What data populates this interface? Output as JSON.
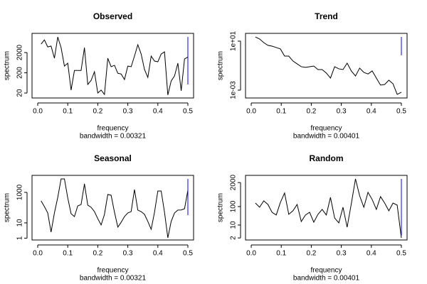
{
  "chart_data": [
    {
      "type": "line",
      "title": "Observed",
      "xlabel": "frequency",
      "ylabel": "spectrum",
      "subtitle": "bandwidth = 0.00321",
      "ylog": true,
      "color": "#000000",
      "x": [
        0.0111,
        0.0222,
        0.0333,
        0.0444,
        0.0556,
        0.0667,
        0.0778,
        0.0889,
        0.1,
        0.1111,
        0.1222,
        0.1333,
        0.1444,
        0.1556,
        0.1667,
        0.1778,
        0.1889,
        0.2,
        0.2111,
        0.2222,
        0.2333,
        0.2444,
        0.2556,
        0.2667,
        0.2778,
        0.2889,
        0.3,
        0.3111,
        0.3222,
        0.3333,
        0.3444,
        0.3556,
        0.3667,
        0.3778,
        0.3889,
        0.4,
        0.4111,
        0.4222,
        0.4333,
        0.4444,
        0.4556,
        0.4667,
        0.4778,
        0.4889,
        0.5
      ],
      "values": [
        5250,
        8500,
        3800,
        4200,
        1050,
        11800,
        3500,
        430,
        600,
        28,
        260,
        260,
        260,
        3500,
        53,
        85,
        225,
        20,
        28,
        17,
        1050,
        400,
        470,
        190,
        175,
        93,
        430,
        400,
        1340,
        4900,
        1700,
        290,
        118,
        1340,
        760,
        700,
        1700,
        2170,
        16,
        79,
        140,
        600,
        26,
        970,
        1200
      ],
      "ci": {
        "x": 0.5,
        "lower": 53,
        "upper": 11800,
        "color": "#0000ff"
      },
      "xlim": [
        -0.019,
        0.519
      ],
      "ylim": [
        11.4,
        17800
      ],
      "xticks": [
        {
          "value": 0,
          "label": "0.0"
        },
        0.1,
        0.2,
        0.3,
        0.4,
        0.5
      ],
      "yticks": [
        20,
        200,
        2000
      ]
    },
    {
      "type": "line",
      "title": "Trend",
      "xlabel": "frequency",
      "ylabel": "spectrum",
      "subtitle": "bandwidth = 0.00401",
      "ylog": true,
      "color": "#000000",
      "x": [
        0.0139,
        0.0278,
        0.0417,
        0.0556,
        0.0694,
        0.0833,
        0.0972,
        0.1111,
        0.125,
        0.1389,
        0.1528,
        0.1667,
        0.1806,
        0.1944,
        0.2083,
        0.2222,
        0.2361,
        0.25,
        0.2639,
        0.2778,
        0.2917,
        0.3056,
        0.3194,
        0.3333,
        0.3472,
        0.3611,
        0.375,
        0.3889,
        0.4028,
        0.4167,
        0.4306,
        0.4444,
        0.4583,
        0.4722,
        0.4861,
        0.5
      ],
      "values": [
        22,
        15,
        7.6,
        4.5,
        3.9,
        3.0,
        2.3,
        0.6,
        0.6,
        0.24,
        0.14,
        0.082,
        0.072,
        0.082,
        0.093,
        0.048,
        0.048,
        0.025,
        0.0097,
        0.082,
        0.055,
        0.048,
        0.16,
        0.037,
        0.0145,
        0.063,
        0.028,
        0.021,
        0.037,
        0.0097,
        0.0026,
        0.0029,
        0.0065,
        0.0033,
        0.00045,
        0.00067
      ],
      "ci": {
        "x": 0.5,
        "lower": 0.69,
        "upper": 22,
        "color": "#0000ff"
      },
      "xlim": [
        -0.019,
        0.519
      ],
      "ylim": [
        0.00023,
        43
      ],
      "xticks": [
        {
          "value": 0,
          "label": "0.0"
        },
        0.1,
        0.2,
        0.3,
        0.4,
        0.5
      ],
      "yticks": [
        {
          "value": 0.001,
          "label": "1e-03"
        },
        {
          "value": 10,
          "label": "1e+01"
        }
      ]
    },
    {
      "type": "line",
      "title": "Seasonal",
      "xlabel": "frequency",
      "ylabel": "spectrum",
      "subtitle": "bandwidth = 0.00321",
      "ylog": true,
      "color": "#000000",
      "x": [
        0.0111,
        0.0222,
        0.0333,
        0.0444,
        0.0556,
        0.0667,
        0.0778,
        0.0889,
        0.1,
        0.1111,
        0.1222,
        0.1333,
        0.1444,
        0.1556,
        0.1667,
        0.1778,
        0.1889,
        0.2,
        0.2111,
        0.2222,
        0.2333,
        0.2444,
        0.2556,
        0.2667,
        0.2778,
        0.2889,
        0.3,
        0.3111,
        0.3222,
        0.3333,
        0.3444,
        0.3556,
        0.3667,
        0.3778,
        0.3889,
        0.4,
        0.4111,
        0.4222,
        0.4333,
        0.4444,
        0.4556,
        0.4667,
        0.4778,
        0.4889,
        0.5
      ],
      "values": [
        280,
        117,
        45,
        2.5,
        45,
        470,
        7600,
        7600,
        430,
        40,
        26,
        130,
        160,
        3600,
        145,
        105,
        55,
        19,
        7.3,
        36,
        730,
        650,
        50,
        5.3,
        11,
        26,
        45,
        55,
        1530,
        69,
        55,
        36,
        12.4,
        3.8,
        50,
        1240,
        1240,
        50,
        1.05,
        12.4,
        45,
        69,
        70,
        85,
        1380
      ],
      "ci": {
        "x": 0.5,
        "lower": 32,
        "upper": 7600,
        "color": "#0000ff"
      },
      "xlim": [
        -0.019,
        0.519
      ],
      "ylim": [
        0.76,
        13000
      ],
      "xticks": [
        {
          "value": 0,
          "label": "0.0"
        },
        0.1,
        0.2,
        0.3,
        0.4,
        0.5
      ],
      "yticks": [
        1,
        10,
        1000
      ]
    },
    {
      "type": "line",
      "title": "Random",
      "xlabel": "frequency",
      "ylabel": "spectrum",
      "subtitle": "bandwidth = 0.00401",
      "ylog": true,
      "color": "#000000",
      "x": [
        0.0139,
        0.0278,
        0.0417,
        0.0556,
        0.0694,
        0.0833,
        0.0972,
        0.1111,
        0.125,
        0.1389,
        0.1528,
        0.1667,
        0.1806,
        0.1944,
        0.2083,
        0.2222,
        0.2361,
        0.25,
        0.2639,
        0.2778,
        0.2917,
        0.3056,
        0.3194,
        0.3333,
        0.3472,
        0.3611,
        0.375,
        0.3889,
        0.4028,
        0.4167,
        0.4306,
        0.4444,
        0.4583,
        0.4722,
        0.4861,
        0.5
      ],
      "values": [
        155,
        92,
        205,
        130,
        49,
        35,
        170,
        540,
        38,
        59,
        130,
        15.5,
        35,
        49,
        14.2,
        38,
        70,
        35,
        315,
        24,
        13,
        92,
        7.6,
        143,
        3160,
        380,
        92,
        590,
        240,
        70,
        345,
        155,
        59,
        155,
        120,
        2.0
      ],
      "ci": {
        "x": 0.5,
        "lower": 2.7,
        "upper": 3160,
        "color": "#0000ff"
      },
      "xlim": [
        -0.019,
        0.519
      ],
      "ylim": [
        1.55,
        4900
      ],
      "xticks": [
        {
          "value": 0,
          "label": "0.0"
        },
        0.1,
        0.2,
        0.3,
        0.4,
        0.5
      ],
      "yticks": [
        2,
        10,
        100,
        2000
      ]
    }
  ]
}
